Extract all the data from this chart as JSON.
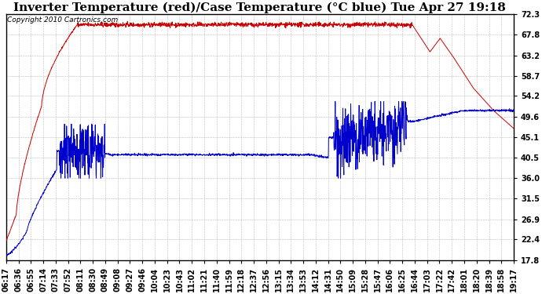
{
  "title": "Inverter Temperature (red)/Case Temperature (°C blue) Tue Apr 27 19:18",
  "copyright": "Copyright 2010 Cartronics.com",
  "yticks": [
    17.8,
    22.4,
    26.9,
    31.5,
    36.0,
    40.5,
    45.1,
    49.6,
    54.2,
    58.7,
    63.2,
    67.8,
    72.3
  ],
  "ylim": [
    17.8,
    72.3
  ],
  "xtick_labels": [
    "06:17",
    "06:36",
    "06:55",
    "07:14",
    "07:33",
    "07:52",
    "08:11",
    "08:30",
    "08:49",
    "09:08",
    "09:27",
    "09:46",
    "10:04",
    "10:23",
    "10:43",
    "11:02",
    "11:21",
    "11:40",
    "11:59",
    "12:18",
    "12:37",
    "12:56",
    "13:15",
    "13:34",
    "13:53",
    "14:12",
    "14:31",
    "14:50",
    "15:09",
    "15:28",
    "15:47",
    "16:06",
    "16:25",
    "16:44",
    "17:03",
    "17:22",
    "17:42",
    "18:01",
    "18:20",
    "18:39",
    "18:58",
    "19:17"
  ],
  "bg_color": "#ffffff",
  "plot_bg_color": "#ffffff",
  "grid_color": "#aaaaaa",
  "red_color": "#cc0000",
  "blue_color": "#0000cc",
  "title_fontsize": 11,
  "tick_fontsize": 7,
  "copyright_fontsize": 6.5
}
